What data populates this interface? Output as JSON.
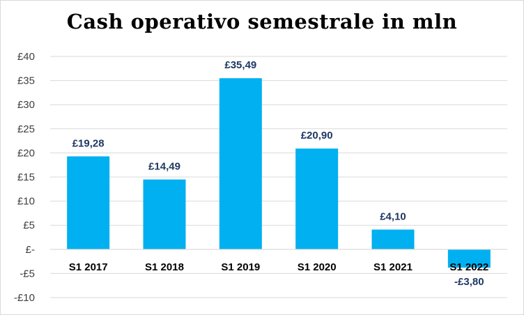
{
  "chart_data": {
    "type": "bar",
    "title": "Cash operativo semestrale in mln",
    "categories": [
      "S1 2017",
      "S1 2018",
      "S1 2019",
      "S1 2020",
      "S1 2021",
      "S1 2022"
    ],
    "values": [
      19.28,
      14.49,
      35.49,
      20.9,
      4.1,
      -3.8
    ],
    "data_labels": [
      "£19,28",
      "£14,49",
      "£35,49",
      "£20,90",
      "£4,10",
      "-£3,80"
    ],
    "y_ticks": [
      40,
      35,
      30,
      25,
      20,
      15,
      10,
      5,
      0,
      -5,
      -10
    ],
    "y_tick_labels": [
      "£40",
      "£35",
      "£30",
      "£25",
      "£20",
      "£15",
      "£10",
      "£5",
      "£-",
      "-£5",
      "-£10"
    ],
    "ylim": [
      -10,
      40
    ],
    "xlabel": "",
    "ylabel": "",
    "grid": true,
    "legend": "none",
    "bar_color": "#00b0f0",
    "label_color": "#1f3864"
  }
}
